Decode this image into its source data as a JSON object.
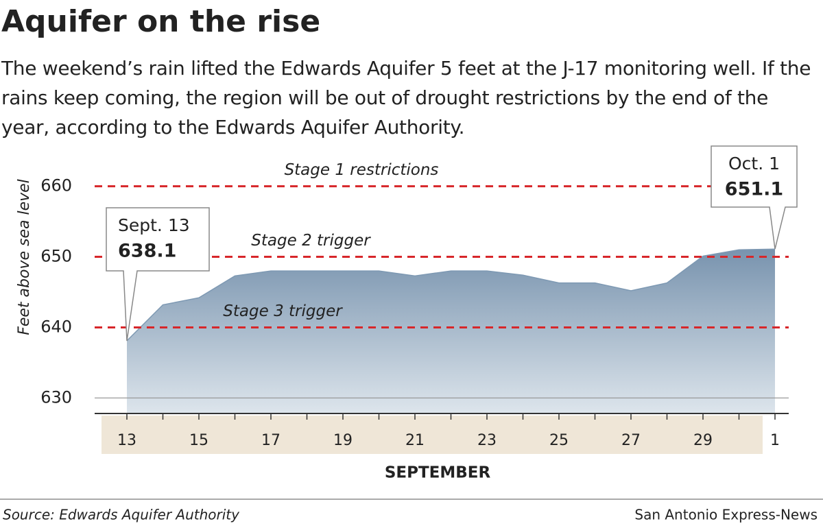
{
  "chart_data": {
    "type": "area",
    "title": "Aquifer on the rise",
    "subtitle": "The weekend’s rain lifted the Edwards Aquifer 5 feet at the J-17 monitoring well. If the rains keep coming, the region will be out of drought restrictions by the end of the year, according to the Edwards Aquifer Authority.",
    "y_label": "Feet above sea level",
    "x_label": "SEPTEMBER",
    "categories": [
      "13",
      null,
      "15",
      null,
      "17",
      null,
      "19",
      null,
      "21",
      null,
      "23",
      null,
      "25",
      null,
      "27",
      null,
      "29",
      null,
      "1"
    ],
    "values": [
      638.1,
      643.2,
      644.2,
      647.3,
      648,
      648,
      648,
      648,
      647.3,
      648,
      648,
      647.4,
      646.3,
      646.3,
      645.2,
      646.3,
      650.1,
      651,
      651.1
    ],
    "color": "#7e99b3",
    "ylim": [
      628,
      662
    ],
    "yticks": [
      630,
      640,
      650,
      660
    ],
    "grid": true,
    "reference_lines": [
      {
        "value": 660,
        "label": "Stage 1 restrictions"
      },
      {
        "value": 650,
        "label": "Stage 2 trigger"
      },
      {
        "value": 640,
        "label": "Stage 3 trigger"
      }
    ],
    "annotations": [
      {
        "date": "Sept. 13",
        "value_label": "638.1"
      },
      {
        "date": "Oct. 1",
        "value_label": "651.1"
      }
    ],
    "source": "Source: Edwards Aquifer Authority",
    "credit": "San Antonio Express-News"
  }
}
